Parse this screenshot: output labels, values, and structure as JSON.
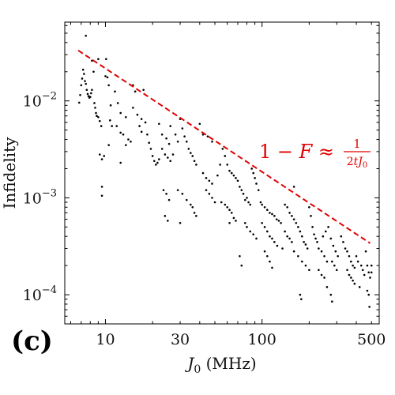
{
  "panel_label": "(c)",
  "chart_data": {
    "type": "scatter",
    "title": "",
    "xlabel": "J_0 (MHz)",
    "ylabel": "Infidelity",
    "xscale": "log",
    "yscale": "log",
    "xlim": [
      5.5,
      560
    ],
    "ylim": [
      5e-05,
      0.065
    ],
    "xticks": [
      10,
      30,
      100,
      500
    ],
    "xtick_labels": [
      "10",
      "30",
      "100",
      "500"
    ],
    "yticks": [
      0.01,
      0.001,
      0.0001
    ],
    "ytick_labels": [
      "10^-2",
      "10^-3",
      "10^-4"
    ],
    "grid": false,
    "annotation": {
      "text": "1 − F ≈ 1/(2tJ_0)",
      "color": "#e00000"
    },
    "fit_line": {
      "style": "dashed",
      "color": "#e00000",
      "x": [
        6.7,
        490
      ],
      "y": [
        0.0332,
        0.00034
      ]
    },
    "series": [
      {
        "color": "#000000",
        "points": [
          [
            7.5,
            0.047
          ],
          [
            6.8,
            0.0096
          ],
          [
            6.9,
            0.0115
          ],
          [
            7.0,
            0.0145
          ],
          [
            7.1,
            0.017
          ],
          [
            7.2,
            0.021
          ],
          [
            7.3,
            0.019
          ],
          [
            7.4,
            0.016
          ],
          [
            7.5,
            0.015
          ],
          [
            7.6,
            0.013
          ],
          [
            7.7,
            0.0118
          ],
          [
            7.8,
            0.0112
          ],
          [
            7.9,
            0.0108
          ],
          [
            8.0,
            0.011
          ],
          [
            8.1,
            0.012
          ],
          [
            8.2,
            0.013
          ],
          [
            8.4,
            0.02
          ],
          [
            8.5,
            0.0095
          ],
          [
            8.6,
            0.0085
          ],
          [
            8.7,
            0.0075
          ],
          [
            8.8,
            0.007
          ],
          [
            9.0,
            0.0068
          ],
          [
            9.2,
            0.0062
          ],
          [
            9.4,
            0.0055
          ],
          [
            9.2,
            0.0028
          ],
          [
            9.5,
            0.0025
          ],
          [
            9.8,
            0.0027
          ],
          [
            9.5,
            0.0013
          ],
          [
            9.5,
            0.00105
          ],
          [
            9.0,
            0.027
          ],
          [
            8.2,
            0.026
          ],
          [
            10.1,
            0.027
          ],
          [
            10.0,
            0.018
          ],
          [
            10.3,
            0.0175
          ],
          [
            10.5,
            0.0145
          ],
          [
            10.8,
            0.009
          ],
          [
            10.7,
            0.0063
          ],
          [
            11.0,
            0.0055
          ],
          [
            10.5,
            0.0035
          ],
          [
            11.5,
            0.0125
          ],
          [
            12.0,
            0.0095
          ],
          [
            12.5,
            0.0075
          ],
          [
            11.8,
            0.0055
          ],
          [
            12.5,
            0.0047
          ],
          [
            13.0,
            0.0045
          ],
          [
            13.5,
            0.0068
          ],
          [
            12.5,
            0.0023
          ],
          [
            13.5,
            0.0035
          ],
          [
            14.0,
            0.004
          ],
          [
            14.5,
            0.0038
          ],
          [
            15.0,
            0.0145
          ],
          [
            15.5,
            0.0125
          ],
          [
            15.0,
            0.0085
          ],
          [
            16.0,
            0.0072
          ],
          [
            16.5,
            0.0055
          ],
          [
            17.0,
            0.0048
          ],
          [
            17.0,
            0.0065
          ],
          [
            17.5,
            0.013
          ],
          [
            18.0,
            0.006
          ],
          [
            18.5,
            0.0045
          ],
          [
            19.0,
            0.0037
          ],
          [
            19.5,
            0.0032
          ],
          [
            20.0,
            0.0027
          ],
          [
            20.5,
            0.0024
          ],
          [
            21.0,
            0.0022
          ],
          [
            21.5,
            0.0023
          ],
          [
            22.0,
            0.0025
          ],
          [
            23.0,
            0.0032
          ],
          [
            24.0,
            0.0028
          ],
          [
            25.0,
            0.0026
          ],
          [
            26.0,
            0.0024
          ],
          [
            27.0,
            0.0028
          ],
          [
            22.0,
            0.0058
          ],
          [
            23.0,
            0.0045
          ],
          [
            24.5,
            0.0041
          ],
          [
            25.5,
            0.0036
          ],
          [
            23.5,
            0.0012
          ],
          [
            24.5,
            0.0011
          ],
          [
            25.5,
            0.00095
          ],
          [
            24.0,
            0.00065
          ],
          [
            25.0,
            0.00058
          ],
          [
            26.0,
            0.0055
          ],
          [
            28.0,
            0.0045
          ],
          [
            29.0,
            0.0038
          ],
          [
            30.0,
            0.0065
          ],
          [
            31.0,
            0.0052
          ],
          [
            32.0,
            0.0043
          ],
          [
            33.0,
            0.0038
          ],
          [
            34.0,
            0.0032
          ],
          [
            35.0,
            0.0029
          ],
          [
            36.0,
            0.0027
          ],
          [
            37.0,
            0.0024
          ],
          [
            38.0,
            0.0022
          ],
          [
            29.0,
            0.0012
          ],
          [
            31.0,
            0.0011
          ],
          [
            30.0,
            0.00055
          ],
          [
            33.0,
            0.00095
          ],
          [
            35.0,
            0.00085
          ],
          [
            36.0,
            0.0008
          ],
          [
            37.0,
            0.0007
          ],
          [
            38.0,
            0.00065
          ],
          [
            40.0,
            0.0058
          ],
          [
            42.0,
            0.0045
          ],
          [
            45.0,
            0.0043
          ],
          [
            48.0,
            0.0038
          ],
          [
            42.0,
            0.0018
          ],
          [
            44.0,
            0.0016
          ],
          [
            46.0,
            0.0015
          ],
          [
            48.0,
            0.0014
          ],
          [
            44.0,
            0.0012
          ],
          [
            46.0,
            0.0011
          ],
          [
            48.0,
            0.001
          ],
          [
            50.0,
            0.0009
          ],
          [
            52.0,
            0.0017
          ],
          [
            54.0,
            0.0022
          ],
          [
            56.0,
            0.0032
          ],
          [
            58.0,
            0.0027
          ],
          [
            60.0,
            0.0022
          ],
          [
            62.0,
            0.0019
          ],
          [
            64.0,
            0.0018
          ],
          [
            66.0,
            0.0017
          ],
          [
            68.0,
            0.0016
          ],
          [
            55.0,
            0.0009
          ],
          [
            58.0,
            0.00085
          ],
          [
            60.0,
            0.0008
          ],
          [
            62.0,
            0.00075
          ],
          [
            64.0,
            0.0007
          ],
          [
            66.0,
            0.00062
          ],
          [
            68.0,
            0.00058
          ],
          [
            62.0,
            0.00055
          ],
          [
            70.0,
            0.0015
          ],
          [
            72.0,
            0.0013
          ],
          [
            74.0,
            0.0012
          ],
          [
            76.0,
            0.0011
          ],
          [
            78.0,
            0.00095
          ],
          [
            80.0,
            0.001
          ],
          [
            82.0,
            0.0009
          ],
          [
            84.0,
            0.00085
          ],
          [
            86.0,
            0.002
          ],
          [
            88.0,
            0.0018
          ],
          [
            90.0,
            0.0016
          ],
          [
            92.0,
            0.0014
          ],
          [
            72.0,
            0.00025
          ],
          [
            74.0,
            0.0002
          ],
          [
            78.0,
            0.00055
          ],
          [
            80.0,
            0.0005
          ],
          [
            84.0,
            0.00045
          ],
          [
            88.0,
            0.00042
          ],
          [
            92.0,
            0.00038
          ],
          [
            95.0,
            0.0012
          ],
          [
            98.0,
            0.0009
          ],
          [
            100.0,
            0.00085
          ],
          [
            104.0,
            0.0008
          ],
          [
            108.0,
            0.00075
          ],
          [
            112.0,
            0.0007
          ],
          [
            116.0,
            0.00068
          ],
          [
            120.0,
            0.00065
          ],
          [
            124.0,
            0.0006
          ],
          [
            128.0,
            0.00058
          ],
          [
            132.0,
            0.00055
          ],
          [
            100.0,
            0.00055
          ],
          [
            104.0,
            0.0005
          ],
          [
            108.0,
            0.00045
          ],
          [
            112.0,
            0.0004
          ],
          [
            116.0,
            0.00038
          ],
          [
            120.0,
            0.00035
          ],
          [
            104.0,
            0.00028
          ],
          [
            108.0,
            0.00025
          ],
          [
            112.0,
            0.00022
          ],
          [
            116.0,
            0.00019
          ],
          [
            125.0,
            0.00032
          ],
          [
            135.0,
            0.0003
          ],
          [
            140.0,
            0.00085
          ],
          [
            145.0,
            0.0008
          ],
          [
            150.0,
            0.0007
          ],
          [
            155.0,
            0.00065
          ],
          [
            160.0,
            0.0006
          ],
          [
            165.0,
            0.00055
          ],
          [
            170.0,
            0.0005
          ],
          [
            160.0,
            0.0013
          ],
          [
            140.0,
            0.00045
          ],
          [
            145.0,
            0.0004
          ],
          [
            150.0,
            0.00038
          ],
          [
            155.0,
            0.00035
          ],
          [
            175.0,
            0.00045
          ],
          [
            180.0,
            0.0004
          ],
          [
            185.0,
            0.00035
          ],
          [
            190.0,
            0.00033
          ],
          [
            195.0,
            0.0003
          ],
          [
            200.0,
            0.0008
          ],
          [
            205.0,
            0.00065
          ],
          [
            210.0,
            0.0005
          ],
          [
            215.0,
            0.00042
          ],
          [
            220.0,
            0.00038
          ],
          [
            160.0,
            0.00028
          ],
          [
            170.0,
            0.00025
          ],
          [
            180.0,
            0.00022
          ],
          [
            190.0,
            0.0002
          ],
          [
            200.0,
            0.00018
          ],
          [
            175.0,
            0.0001
          ],
          [
            178.0,
            9e-05
          ],
          [
            225.0,
            0.00035
          ],
          [
            230.0,
            0.0003
          ],
          [
            240.0,
            0.00028
          ],
          [
            250.0,
            0.00025
          ],
          [
            260.0,
            0.00022
          ],
          [
            230.0,
            0.00018
          ],
          [
            240.0,
            0.00016
          ],
          [
            250.0,
            0.00015
          ],
          [
            260.0,
            0.00012
          ],
          [
            245.0,
            0.0004
          ],
          [
            255.0,
            0.00045
          ],
          [
            265.0,
            0.0005
          ],
          [
            275.0,
            0.00038
          ],
          [
            285.0,
            0.00032
          ],
          [
            295.0,
            0.00028
          ],
          [
            305.0,
            0.00025
          ],
          [
            280.0,
            0.00022
          ],
          [
            290.0,
            0.0002
          ],
          [
            300.0,
            0.00018
          ],
          [
            275.0,
            0.0001
          ],
          [
            280.0,
            8.5e-05
          ],
          [
            320.0,
            0.0004
          ],
          [
            330.0,
            0.00035
          ],
          [
            340.0,
            0.0003
          ],
          [
            350.0,
            0.00028
          ],
          [
            360.0,
            0.00025
          ],
          [
            370.0,
            0.00022
          ],
          [
            380.0,
            0.0002
          ],
          [
            390.0,
            0.00019
          ],
          [
            350.0,
            0.00018
          ],
          [
            360.0,
            0.00016
          ],
          [
            370.0,
            0.00015
          ],
          [
            380.0,
            0.00014
          ],
          [
            390.0,
            0.00013
          ],
          [
            400.0,
            0.00025
          ],
          [
            410.0,
            0.00022
          ],
          [
            420.0,
            0.00012
          ],
          [
            430.0,
            0.0002
          ],
          [
            440.0,
            0.00018
          ],
          [
            450.0,
            0.00016
          ],
          [
            460.0,
            0.00028
          ],
          [
            470.0,
            0.0002
          ],
          [
            480.0,
            0.00017
          ],
          [
            490.0,
            0.00015
          ],
          [
            470.0,
            0.00011
          ],
          [
            480.0,
            0.0001
          ],
          [
            485.0,
            7.5e-05
          ],
          [
            500.0,
            0.00017
          ],
          [
            500.0,
            0.0002
          ]
        ]
      }
    ]
  }
}
